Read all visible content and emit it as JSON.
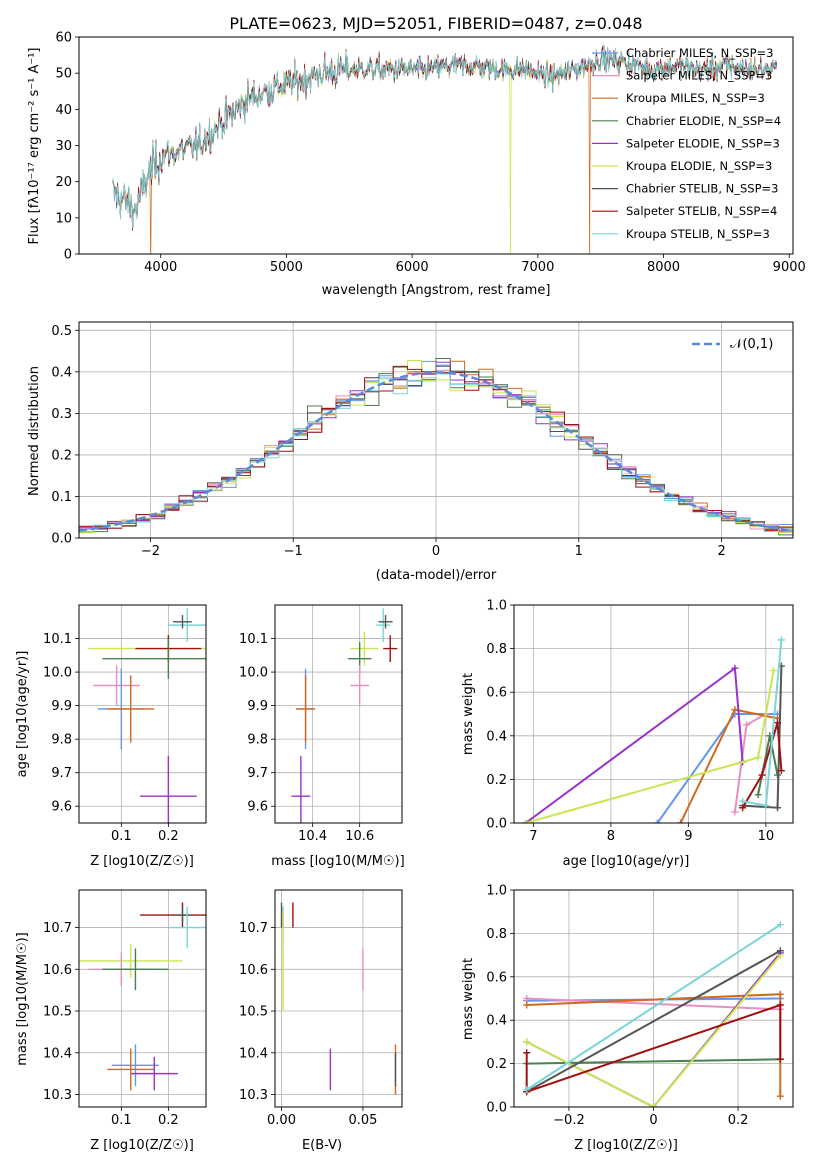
{
  "chart_data": [
    {
      "id": "spectrum",
      "type": "line",
      "title": "PLATE=0623, MJD=52051, FIBERID=0487, z=0.048",
      "xlabel": "wavelength [Angstrom, rest frame]",
      "ylabel": "Flux [fλ10⁻¹⁷ erg cm⁻² s⁻¹ A⁻¹]",
      "xlim": [
        3350,
        9030
      ],
      "ylim": [
        0,
        60
      ],
      "xticks": [
        4000,
        5000,
        6000,
        7000,
        8000,
        9000
      ],
      "yticks": [
        0,
        10,
        20,
        30,
        40,
        50,
        60
      ],
      "legend": "top-right",
      "continuum": {
        "x": [
          3620,
          3700,
          3800,
          3900,
          4000,
          4100,
          4300,
          4500,
          4700,
          4900,
          5100,
          5300,
          5500,
          5700,
          5900,
          6100,
          6300,
          6500,
          6700,
          6900,
          7100,
          7300,
          7500,
          7700,
          7900,
          8100,
          8300,
          8500,
          8700,
          8900
        ],
        "y": [
          17,
          15,
          12,
          22,
          27,
          28,
          30,
          37,
          43,
          46,
          48,
          50,
          51,
          51,
          51,
          51,
          52,
          52,
          51,
          51,
          49,
          51,
          54,
          53,
          51,
          52,
          51,
          52,
          51,
          51
        ]
      },
      "series": [
        {
          "name": "Chabrier MILES, N_SSP=3",
          "color": "#6495ed"
        },
        {
          "name": "Salpeter MILES, N_SSP=3",
          "color": "#e88fbf"
        },
        {
          "name": "Kroupa MILES, N_SSP=3",
          "color": "#d2691e"
        },
        {
          "name": "Chabrier ELODIE, N_SSP=4",
          "color": "#4b7f52"
        },
        {
          "name": "Salpeter ELODIE, N_SSP=3",
          "color": "#9932cc"
        },
        {
          "name": "Kroupa ELODIE, N_SSP=3",
          "color": "#c8e650"
        },
        {
          "name": "Chabrier STELIB, N_SSP=3",
          "color": "#555555"
        },
        {
          "name": "Salpeter STELIB, N_SSP=4",
          "color": "#a01010"
        },
        {
          "name": "Kroupa STELIB, N_SSP=3",
          "color": "#7ad6d6"
        }
      ],
      "drops": [
        {
          "series": 2,
          "x": 3920
        },
        {
          "series": 5,
          "x": 6780
        },
        {
          "series": 2,
          "x": 7410
        }
      ]
    },
    {
      "id": "residuals",
      "type": "line",
      "xlabel": "(data-model)/error",
      "ylabel": "Normed distribution",
      "xlim": [
        -2.5,
        2.5
      ],
      "ylim": [
        0,
        0.52
      ],
      "xticks": [
        -2,
        -1,
        0,
        1,
        2
      ],
      "yticks": [
        0.0,
        0.1,
        0.2,
        0.3,
        0.4,
        0.5
      ],
      "gaussian_label": "𝒩(0,1)",
      "gaussian": {
        "mu": 0,
        "sigma": 1,
        "color": "#5b8bd8"
      },
      "bin_width": 0.1
    },
    {
      "id": "age_vs_Z",
      "type": "scatter",
      "xlabel": "Z [log10(Z/Z☉)]",
      "ylabel": "age  [log10(age/yr)]",
      "xlim": [
        0.01,
        0.28
      ],
      "ylim": [
        9.55,
        10.2
      ],
      "xticks": [
        0.1,
        0.2
      ],
      "yticks": [
        9.6,
        9.7,
        9.8,
        9.9,
        10.0,
        10.1
      ],
      "points": [
        {
          "x": 0.2,
          "y": 10.07,
          "xerr": 0.17,
          "yerr": 0.03,
          "color": "#c8e650"
        },
        {
          "x": 0.2,
          "y": 10.07,
          "xerr": 0.07,
          "yerr": 0.04,
          "color": "#a01010"
        },
        {
          "x": 0.24,
          "y": 10.14,
          "xerr": 0.04,
          "yerr": 0.05,
          "color": "#7ad6d6"
        },
        {
          "x": 0.23,
          "y": 10.15,
          "xerr": 0.02,
          "yerr": 0.02,
          "color": "#555555"
        },
        {
          "x": 0.2,
          "y": 10.04,
          "xerr": 0.14,
          "yerr": 0.06,
          "color": "#4b7f52"
        },
        {
          "x": 0.09,
          "y": 9.96,
          "xerr": 0.05,
          "yerr": 0.06,
          "color": "#e88fbf"
        },
        {
          "x": 0.1,
          "y": 9.89,
          "xerr": 0.05,
          "yerr": 0.12,
          "color": "#6495ed"
        },
        {
          "x": 0.12,
          "y": 9.89,
          "xerr": 0.05,
          "yerr": 0.1,
          "color": "#d2691e"
        },
        {
          "x": 0.2,
          "y": 9.63,
          "xerr": 0.06,
          "yerr": 0.12,
          "color": "#9932cc"
        }
      ]
    },
    {
      "id": "age_vs_mass",
      "type": "scatter",
      "xlabel": "mass [log10(M/M☉)]",
      "ylabel": "",
      "xlim": [
        10.24,
        10.78
      ],
      "ylim": [
        9.55,
        10.2
      ],
      "xticks": [
        10.4,
        10.6
      ],
      "yticks": [
        9.6,
        9.7,
        9.8,
        9.9,
        10.0,
        10.1
      ],
      "points": [
        {
          "x": 10.62,
          "y": 10.07,
          "xerr": 0.06,
          "yerr": 0.05,
          "color": "#c8e650"
        },
        {
          "x": 10.73,
          "y": 10.07,
          "xerr": 0.03,
          "yerr": 0.04,
          "color": "#a01010"
        },
        {
          "x": 10.7,
          "y": 10.14,
          "xerr": 0.03,
          "yerr": 0.05,
          "color": "#7ad6d6"
        },
        {
          "x": 10.71,
          "y": 10.15,
          "xerr": 0.03,
          "yerr": 0.02,
          "color": "#555555"
        },
        {
          "x": 10.6,
          "y": 10.04,
          "xerr": 0.05,
          "yerr": 0.05,
          "color": "#4b7f52"
        },
        {
          "x": 10.6,
          "y": 9.96,
          "xerr": 0.04,
          "yerr": 0.06,
          "color": "#e88fbf"
        },
        {
          "x": 10.37,
          "y": 9.89,
          "xerr": 0.04,
          "yerr": 0.12,
          "color": "#6495ed"
        },
        {
          "x": 10.37,
          "y": 9.89,
          "xerr": 0.04,
          "yerr": 0.1,
          "color": "#d2691e"
        },
        {
          "x": 10.35,
          "y": 9.63,
          "xerr": 0.04,
          "yerr": 0.12,
          "color": "#9932cc"
        }
      ]
    },
    {
      "id": "weight_vs_age",
      "type": "line",
      "xlabel": "age  [log10(age/yr)]",
      "ylabel": "mass weight",
      "xlim": [
        6.75,
        10.35
      ],
      "ylim": [
        0,
        1.0
      ],
      "xticks": [
        7,
        8,
        9,
        10
      ],
      "yticks": [
        0.0,
        0.2,
        0.4,
        0.6,
        0.8,
        1.0
      ],
      "series": [
        {
          "color": "#6495ed",
          "x": [
            8.6,
            9.6,
            10.15
          ],
          "y": [
            0.0,
            0.5,
            0.5
          ]
        },
        {
          "color": "#e88fbf",
          "x": [
            9.6,
            9.75,
            10.0
          ],
          "y": [
            0.05,
            0.45,
            0.5
          ]
        },
        {
          "color": "#d2691e",
          "x": [
            8.9,
            9.6,
            10.15
          ],
          "y": [
            0.0,
            0.52,
            0.48
          ]
        },
        {
          "color": "#4b7f52",
          "x": [
            9.9,
            10.05,
            10.15
          ],
          "y": [
            0.13,
            0.4,
            0.22
          ]
        },
        {
          "color": "#9932cc",
          "x": [
            6.9,
            9.6,
            9.7
          ],
          "y": [
            0.0,
            0.71,
            0.28
          ]
        },
        {
          "color": "#c8e650",
          "x": [
            6.9,
            9.9,
            10.1
          ],
          "y": [
            0.0,
            0.3,
            0.7
          ]
        },
        {
          "color": "#555555",
          "x": [
            9.7,
            10.15,
            10.2
          ],
          "y": [
            0.08,
            0.07,
            0.72
          ]
        },
        {
          "color": "#a01010",
          "x": [
            9.7,
            9.95,
            10.15,
            10.2
          ],
          "y": [
            0.07,
            0.22,
            0.46,
            0.24
          ]
        },
        {
          "color": "#7ad6d6",
          "x": [
            9.7,
            10.0,
            10.2
          ],
          "y": [
            0.1,
            0.08,
            0.84
          ]
        }
      ]
    },
    {
      "id": "mass_vs_Z",
      "type": "scatter",
      "xlabel": "Z [log10(Z/Z☉)]",
      "ylabel": "mass [log10(M/M☉)]",
      "xlim": [
        0.01,
        0.28
      ],
      "ylim": [
        10.27,
        10.79
      ],
      "xticks": [
        0.1,
        0.2
      ],
      "yticks": [
        10.3,
        10.4,
        10.5,
        10.6,
        10.7
      ],
      "points": [
        {
          "x": 0.23,
          "y": 10.73,
          "xerr": 0.09,
          "yerr": 0.03,
          "color": "#a01010"
        },
        {
          "x": 0.23,
          "y": 10.73,
          "xerr": 0.02,
          "yerr": 0.02,
          "color": "#555555"
        },
        {
          "x": 0.24,
          "y": 10.7,
          "xerr": 0.04,
          "yerr": 0.05,
          "color": "#7ad6d6"
        },
        {
          "x": 0.12,
          "y": 10.62,
          "xerr": 0.11,
          "yerr": 0.04,
          "color": "#c8e650"
        },
        {
          "x": 0.1,
          "y": 10.6,
          "xerr": 0.07,
          "yerr": 0.04,
          "color": "#e88fbf"
        },
        {
          "x": 0.13,
          "y": 10.6,
          "xerr": 0.07,
          "yerr": 0.05,
          "color": "#4b7f52"
        },
        {
          "x": 0.13,
          "y": 10.37,
          "xerr": 0.05,
          "yerr": 0.05,
          "color": "#6495ed"
        },
        {
          "x": 0.12,
          "y": 10.36,
          "xerr": 0.05,
          "yerr": 0.05,
          "color": "#d2691e"
        },
        {
          "x": 0.17,
          "y": 10.35,
          "xerr": 0.05,
          "yerr": 0.04,
          "color": "#9932cc"
        }
      ]
    },
    {
      "id": "mass_vs_ebv",
      "type": "scatter",
      "xlabel": "E(B-V)",
      "ylabel": "",
      "xlim": [
        -0.004,
        0.074
      ],
      "ylim": [
        10.27,
        10.79
      ],
      "xticks": [
        0.0,
        0.05
      ],
      "yticks": [
        10.3,
        10.4,
        10.5,
        10.6,
        10.7
      ],
      "points": [
        {
          "x": 0.007,
          "y": 10.73,
          "xerr": 0.0,
          "yerr": 0.03,
          "color": "#a01010"
        },
        {
          "x": 0.001,
          "y": 10.7,
          "xerr": 0.0,
          "yerr": 0.05,
          "color": "#7ad6d6"
        },
        {
          "x": 0.001,
          "y": 10.62,
          "xerr": 0.0,
          "yerr": 0.12,
          "color": "#c8e650"
        },
        {
          "x": 0.0,
          "y": 10.73,
          "xerr": 0.0,
          "yerr": 0.03,
          "color": "#555555"
        },
        {
          "x": 0.05,
          "y": 10.6,
          "xerr": 0.0,
          "yerr": 0.05,
          "color": "#e88fbf"
        },
        {
          "x": 0.03,
          "y": 10.36,
          "xerr": 0.0,
          "yerr": 0.05,
          "color": "#9932cc"
        },
        {
          "x": 0.07,
          "y": 10.36,
          "xerr": 0.0,
          "yerr": 0.06,
          "color": "#d2691e"
        },
        {
          "x": 0.07,
          "y": 10.36,
          "xerr": 0.0,
          "yerr": 0.04,
          "color": "#555555"
        }
      ]
    },
    {
      "id": "weight_vs_Z",
      "type": "line",
      "xlabel": "Z [log10(Z/Z☉)]",
      "ylabel": "mass weight",
      "xlim": [
        -0.33,
        0.33
      ],
      "ylim": [
        0,
        1.0
      ],
      "xticks": [
        -0.2,
        0.0,
        0.2
      ],
      "yticks": [
        0.0,
        0.2,
        0.4,
        0.6,
        0.8,
        1.0
      ],
      "series": [
        {
          "color": "#6495ed",
          "x": [
            -0.3,
            0.3
          ],
          "y": [
            0.49,
            0.5
          ]
        },
        {
          "color": "#e88fbf",
          "x": [
            -0.3,
            0.3
          ],
          "y": [
            0.5,
            0.45
          ]
        },
        {
          "color": "#d2691e",
          "x": [
            -0.3,
            0.3,
            0.3
          ],
          "y": [
            0.47,
            0.52,
            0.05
          ]
        },
        {
          "color": "#4b7f52",
          "x": [
            -0.3,
            0.3
          ],
          "y": [
            0.2,
            0.22
          ]
        },
        {
          "color": "#9932cc",
          "x": [
            -0.3,
            0.0,
            0.3
          ],
          "y": [
            0.3,
            0.0,
            0.71
          ]
        },
        {
          "color": "#c8e650",
          "x": [
            -0.3,
            0.0,
            0.3
          ],
          "y": [
            0.3,
            0.0,
            0.7
          ]
        },
        {
          "color": "#555555",
          "x": [
            -0.3,
            0.3
          ],
          "y": [
            0.07,
            0.72
          ]
        },
        {
          "color": "#a01010",
          "x": [
            -0.3,
            -0.3,
            0.3,
            0.3
          ],
          "y": [
            0.25,
            0.07,
            0.47,
            0.22
          ]
        },
        {
          "color": "#7ad6d6",
          "x": [
            -0.3,
            0.3
          ],
          "y": [
            0.08,
            0.84
          ]
        }
      ]
    }
  ]
}
